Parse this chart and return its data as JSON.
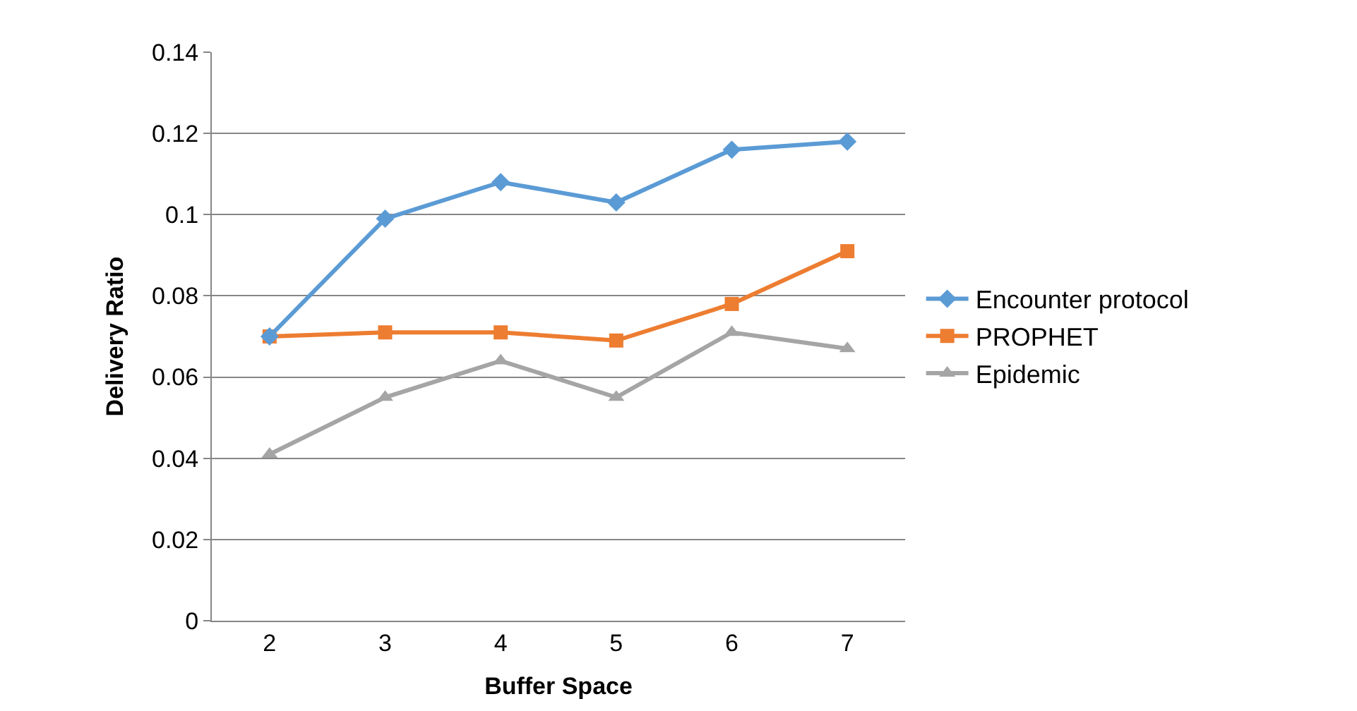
{
  "chart_data": {
    "type": "line",
    "xlabel": "Buffer Space",
    "ylabel": "Delivery Ratio",
    "categories": [
      "2",
      "3",
      "4",
      "5",
      "6",
      "7"
    ],
    "series": [
      {
        "name": "Encounter protocol",
        "color": "#5b9bd5",
        "marker": "diamond",
        "values": [
          0.07,
          0.099,
          0.108,
          0.103,
          0.116,
          0.118
        ]
      },
      {
        "name": "PROPHET",
        "color": "#ed7d31",
        "marker": "square",
        "values": [
          0.07,
          0.071,
          0.071,
          0.069,
          0.078,
          0.091
        ]
      },
      {
        "name": "Epidemic",
        "color": "#a5a5a5",
        "marker": "triangle",
        "values": [
          0.041,
          0.055,
          0.064,
          0.055,
          0.071,
          0.067
        ]
      }
    ],
    "ylim": [
      0,
      0.14
    ],
    "yticks": [
      0,
      0.02,
      0.04,
      0.06,
      0.08,
      0.1,
      0.12,
      0.14
    ],
    "grid": "y",
    "legend": "right",
    "line_style": "solid"
  }
}
